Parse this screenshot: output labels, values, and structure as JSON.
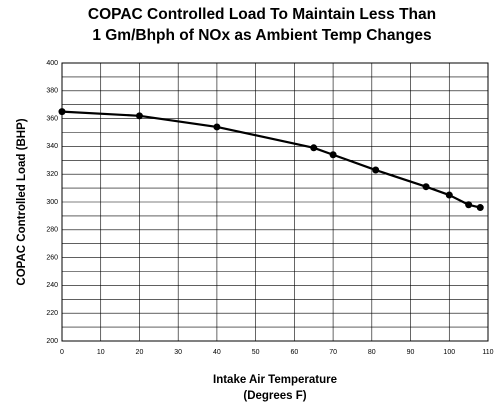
{
  "chart_data": {
    "type": "line",
    "title": [
      "COPAC Controlled Load To Maintain Less Than",
      "1 Gm/Bhph of NOx as Ambient Temp Changes"
    ],
    "x_label": [
      "Intake Air Temperature",
      "(Degrees F)"
    ],
    "y_label": "COPAC Controlled Load (BHP)",
    "x": [
      0,
      20,
      40,
      65,
      70,
      81,
      94,
      100,
      105,
      108
    ],
    "series": [
      {
        "name": "COPAC Controlled Load",
        "color": "#000000",
        "values": [
          365,
          362,
          354,
          339,
          334,
          323,
          311,
          305,
          298,
          296
        ]
      }
    ],
    "xlim": [
      0,
      110
    ],
    "xticks": [
      0,
      10,
      20,
      30,
      40,
      50,
      60,
      70,
      80,
      90,
      100,
      110
    ],
    "ylim": [
      200,
      400
    ],
    "yticks": [
      200,
      220,
      240,
      260,
      280,
      300,
      320,
      340,
      360,
      380,
      400
    ],
    "yminorticks": [
      210,
      230,
      250,
      270,
      290,
      310,
      330,
      350,
      370,
      390
    ],
    "grid": true,
    "markers": true
  }
}
